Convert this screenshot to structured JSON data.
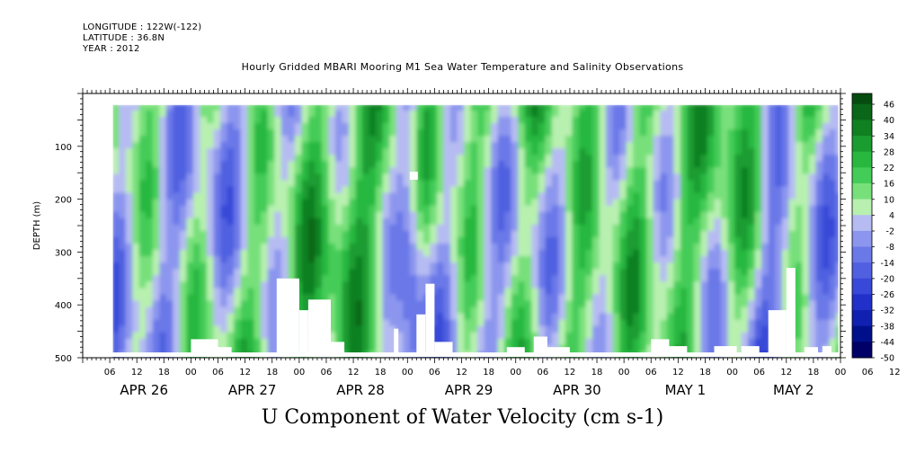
{
  "header": {
    "longitude": "LONGITUDE : 122W(-122)",
    "latitude": "LATITUDE : 36.8N",
    "year": "YEAR : 2012"
  },
  "plot_title": "Hourly Gridded MBARI Mooring M1 Sea Water Temperature and Salinity Observations",
  "bottom_title": "U Component of Water Velocity (cm s-1)",
  "chart_data": {
    "type": "heatmap",
    "title": "Hourly Gridded MBARI Mooring M1 Sea Water Temperature and Salinity Observations",
    "variable": "U Component of Water Velocity (cm s-1)",
    "xlabel": "",
    "ylabel": "DEPTH (m)",
    "ylim": [
      500,
      0
    ],
    "y_reversed": true,
    "y_ticks": [
      100,
      200,
      300,
      400,
      500
    ],
    "x_hour_ticks": [
      "06",
      "12",
      "18",
      "00",
      "06",
      "12",
      "18",
      "00",
      "06",
      "12",
      "18",
      "00",
      "06",
      "12",
      "18",
      "00",
      "06",
      "12",
      "18",
      "00",
      "06",
      "12",
      "18",
      "00",
      "06",
      "12",
      "18",
      "00",
      "06",
      "12",
      "18",
      "00"
    ],
    "x_day_labels": [
      "APR 26",
      "APR 27",
      "APR 28",
      "APR 29",
      "APR 30",
      "MAY  1",
      "MAY  2"
    ],
    "x_range_hours": [
      0,
      168
    ],
    "data_start_hour": 6.5,
    "depth_range_with_data": [
      20,
      490
    ],
    "colorbar": {
      "labels": [
        "46",
        "40",
        "34",
        "28",
        "22",
        "16",
        "10",
        "4",
        "-2",
        "-8",
        "-14",
        "-20",
        "-26",
        "-32",
        "-38",
        "-44",
        "-50"
      ],
      "range": [
        -50,
        50
      ]
    },
    "dominant_values_by_day": [
      {
        "day": "APR 26",
        "pattern": "mixed -10 to +15, positive bands mid-depth"
      },
      {
        "day": "APR 27",
        "pattern": "alternating -12 to +14"
      },
      {
        "day": "APR 28",
        "pattern": "strong positive 15 to 30 across depth"
      },
      {
        "day": "APR 29",
        "pattern": "negative near 00h, then mixed"
      },
      {
        "day": "APR 30",
        "pattern": "positive 10 to 35 near surface, tilted bands"
      },
      {
        "day": "MAY  1",
        "pattern": "positive up to 40 near surface, negative streaks"
      },
      {
        "day": "MAY  2",
        "pattern": "mixed -15 to +20"
      }
    ],
    "colors": {
      "strong_positive": "#0a5c1a",
      "positive": "#35c24a",
      "weak_positive": "#9ee89a",
      "weak_negative": "#b8b8f0",
      "negative": "#8c8ce8",
      "strong_negative": "#2020c0"
    }
  }
}
